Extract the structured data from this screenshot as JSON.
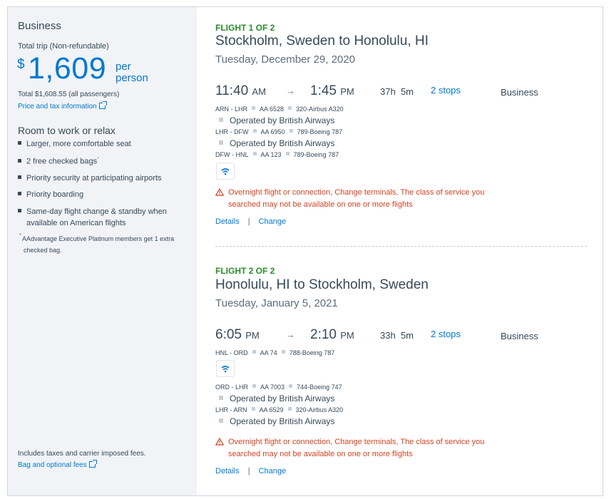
{
  "sidebar": {
    "cabin": "Business",
    "trip_type": "Total trip (Non-refundable)",
    "currency": "$",
    "price": "1,609",
    "per": "per",
    "person": "person",
    "total": "Total $1,608.55 (all passengers)",
    "price_tax_link": "Price and tax information",
    "features_title": "Room to work or relax",
    "features": [
      "Larger, more comfortable seat",
      "2 free checked bags",
      "Priority security at participating airports",
      "Priority boarding",
      "Same-day flight change & standby when",
      "available on American flights"
    ],
    "bag_mark": "*",
    "footnote_line1": "AAdvantage Executive Platinum members get 1 extra",
    "footnote_line2": "checked bag.",
    "includes": "Includes taxes and carrier imposed fees.",
    "bag_fees_link": "Bag and optional fees"
  },
  "flight1": {
    "label": "FLIGHT 1 OF 2",
    "route": "Stockholm, Sweden to Honolulu, HI",
    "date": "Tuesday, December 29, 2020",
    "depart_time": "11:40",
    "depart_ampm": "AM",
    "arrow": "→",
    "arrive_time": "1:45",
    "arrive_ampm": "PM",
    "duration_h": "37h",
    "duration_m": "5m",
    "stops": "2 stops",
    "cabin": "Business",
    "segments": [
      {
        "route": "ARN - LHR",
        "flight": "AA 6528",
        "aircraft": "320-Airbus A320",
        "operated": "Operated by British Airways"
      },
      {
        "route": "LHR - DFW",
        "flight": "AA 6950",
        "aircraft": "789-Boeing 787",
        "operated": "Operated by British Airways"
      },
      {
        "route": "DFW - HNL",
        "flight": "AA 123",
        "aircraft": "789-Boeing 787"
      }
    ],
    "warning_line1": "Overnight flight or connection, Change terminals, The class of service you",
    "warning_line2": "searched may not be available on one or more flights",
    "details": "Details",
    "sep": "|",
    "change": "Change"
  },
  "flight2": {
    "label": "FLIGHT 2 OF 2",
    "route": "Honolulu, HI to Stockholm, Sweden",
    "date": "Tuesday, January 5, 2021",
    "depart_time": "6:05",
    "depart_ampm": "PM",
    "arrow": "→",
    "arrive_time": "2:10",
    "arrive_ampm": "PM",
    "duration_h": "33h",
    "duration_m": "5m",
    "stops": "2 stops",
    "cabin": "Business",
    "segments": [
      {
        "route": "HNL - ORD",
        "flight": "AA 74",
        "aircraft": "788-Boeing 787"
      },
      {
        "route": "ORD - LHR",
        "flight": "AA 7003",
        "aircraft": "744-Boeing 747",
        "operated": "Operated by British Airways"
      },
      {
        "route": "LHR - ARN",
        "flight": "AA 6529",
        "aircraft": "320-Airbus A320",
        "operated": "Operated by British Airways"
      }
    ],
    "warning_line1": "Overnight flight or connection, Change terminals, The class of service you",
    "warning_line2": "searched may not be available on one or more flights",
    "details": "Details",
    "sep": "|",
    "change": "Change"
  },
  "colors": {
    "accent": "#0078d2",
    "green": "#2d8a2d",
    "warning": "#d14424",
    "text": "#36495a"
  }
}
